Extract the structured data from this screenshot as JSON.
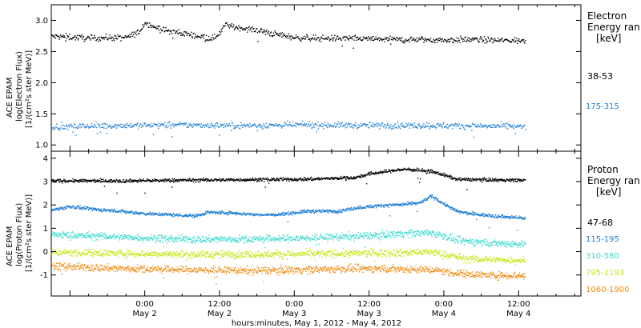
{
  "figure": {
    "xlabel": "hours:minutes, May  1, 2012 - May  4, 2012",
    "x_ticks": [
      {
        "time": "0:00",
        "day": "May 2",
        "t": 24
      },
      {
        "time": "12:00",
        "day": "May 2",
        "t": 36
      },
      {
        "time": "0:00",
        "day": "May 3",
        "t": 48
      },
      {
        "time": "12:00",
        "day": "May 3",
        "t": 60
      },
      {
        "time": "0:00",
        "day": "May 4",
        "t": 72
      },
      {
        "time": "12:00",
        "day": "May 4",
        "t": 84
      }
    ],
    "xlim_hours_since_may1": [
      9,
      94
    ]
  },
  "chart_data": [
    {
      "type": "scatter",
      "ylabel": [
        "ACE EPAM",
        "log(Electron Flux)",
        "[1/(cm²s ster MeV)]"
      ],
      "ylim": [
        0.9,
        3.25
      ],
      "yticks": [
        1.0,
        1.5,
        2.0,
        2.5,
        3.0
      ],
      "legend": {
        "title": [
          "Electron",
          "Energy ran",
          "[keV]"
        ],
        "placement": "right"
      },
      "series": [
        {
          "name": "38-53",
          "color": "#000000",
          "baseline": 2.72,
          "points": [
            [
              9,
              2.75
            ],
            [
              12,
              2.74
            ],
            [
              15,
              2.72
            ],
            [
              18,
              2.73
            ],
            [
              21,
              2.73
            ],
            [
              23,
              2.82
            ],
            [
              24,
              2.98
            ],
            [
              25,
              2.92
            ],
            [
              27,
              2.85
            ],
            [
              30,
              2.8
            ],
            [
              33,
              2.75
            ],
            [
              35,
              2.72
            ],
            [
              36,
              2.82
            ],
            [
              37,
              2.95
            ],
            [
              38,
              2.9
            ],
            [
              40,
              2.88
            ],
            [
              42,
              2.85
            ],
            [
              44,
              2.8
            ],
            [
              46,
              2.77
            ],
            [
              48,
              2.73
            ],
            [
              52,
              2.72
            ],
            [
              56,
              2.72
            ],
            [
              60,
              2.71
            ],
            [
              64,
              2.7
            ],
            [
              68,
              2.7
            ],
            [
              72,
              2.69
            ],
            [
              76,
              2.7
            ],
            [
              80,
              2.69
            ],
            [
              85,
              2.68
            ]
          ]
        },
        {
          "name": "175-315",
          "color": "#1f7fd6",
          "baseline": 1.32,
          "points": [
            [
              9,
              1.3
            ],
            [
              20,
              1.32
            ],
            [
              30,
              1.33
            ],
            [
              40,
              1.32
            ],
            [
              50,
              1.33
            ],
            [
              60,
              1.32
            ],
            [
              70,
              1.32
            ],
            [
              80,
              1.31
            ],
            [
              85,
              1.3
            ]
          ]
        }
      ]
    },
    {
      "type": "scatter",
      "ylabel": [
        "ACE EPAM",
        "log(Proton Flux)",
        "[1/(cm²s ster MeV)]"
      ],
      "ylim": [
        -1.9,
        4.3
      ],
      "yticks": [
        -1,
        0,
        1,
        2,
        3,
        4
      ],
      "legend": {
        "title": [
          "Proton",
          "Energy ran",
          "[keV]"
        ],
        "placement": "right"
      },
      "series": [
        {
          "name": "47-68",
          "color": "#000000",
          "points": [
            [
              9,
              3.05
            ],
            [
              20,
              3.05
            ],
            [
              30,
              3.08
            ],
            [
              40,
              3.1
            ],
            [
              50,
              3.12
            ],
            [
              58,
              3.2
            ],
            [
              60,
              3.35
            ],
            [
              64,
              3.5
            ],
            [
              66,
              3.55
            ],
            [
              68,
              3.5
            ],
            [
              70,
              3.45
            ],
            [
              72,
              3.3
            ],
            [
              74,
              3.12
            ],
            [
              78,
              3.1
            ],
            [
              85,
              3.08
            ]
          ]
        },
        {
          "name": "115-195",
          "color": "#1f7fd6",
          "points": [
            [
              9,
              1.8
            ],
            [
              12,
              1.95
            ],
            [
              15,
              1.85
            ],
            [
              20,
              1.75
            ],
            [
              24,
              1.65
            ],
            [
              28,
              1.6
            ],
            [
              32,
              1.55
            ],
            [
              34,
              1.7
            ],
            [
              38,
              1.68
            ],
            [
              42,
              1.6
            ],
            [
              45,
              1.6
            ],
            [
              50,
              1.75
            ],
            [
              55,
              1.75
            ],
            [
              58,
              1.9
            ],
            [
              62,
              2.0
            ],
            [
              66,
              2.05
            ],
            [
              68,
              2.1
            ],
            [
              70,
              2.4
            ],
            [
              72,
              2.05
            ],
            [
              74,
              1.75
            ],
            [
              76,
              1.65
            ],
            [
              80,
              1.55
            ],
            [
              85,
              1.45
            ]
          ]
        },
        {
          "name": "310-580",
          "color": "#3cd9cf",
          "points": [
            [
              9,
              0.75
            ],
            [
              20,
              0.65
            ],
            [
              30,
              0.55
            ],
            [
              40,
              0.55
            ],
            [
              50,
              0.6
            ],
            [
              60,
              0.7
            ],
            [
              65,
              0.8
            ],
            [
              70,
              0.82
            ],
            [
              72,
              0.7
            ],
            [
              74,
              0.5
            ],
            [
              80,
              0.38
            ],
            [
              85,
              0.35
            ]
          ]
        },
        {
          "name": "795-1193",
          "color": "#c6e617",
          "points": [
            [
              9,
              0.0
            ],
            [
              20,
              -0.05
            ],
            [
              30,
              -0.1
            ],
            [
              40,
              -0.1
            ],
            [
              50,
              -0.08
            ],
            [
              60,
              -0.05
            ],
            [
              70,
              0.0
            ],
            [
              72,
              -0.1
            ],
            [
              76,
              -0.3
            ],
            [
              85,
              -0.35
            ]
          ]
        },
        {
          "name": "1060-1900",
          "color": "#f08c14",
          "points": [
            [
              9,
              -0.6
            ],
            [
              20,
              -0.7
            ],
            [
              30,
              -0.75
            ],
            [
              40,
              -0.8
            ],
            [
              50,
              -0.75
            ],
            [
              60,
              -0.7
            ],
            [
              70,
              -0.75
            ],
            [
              74,
              -0.9
            ],
            [
              80,
              -1.0
            ],
            [
              85,
              -1.0
            ]
          ]
        }
      ]
    }
  ]
}
